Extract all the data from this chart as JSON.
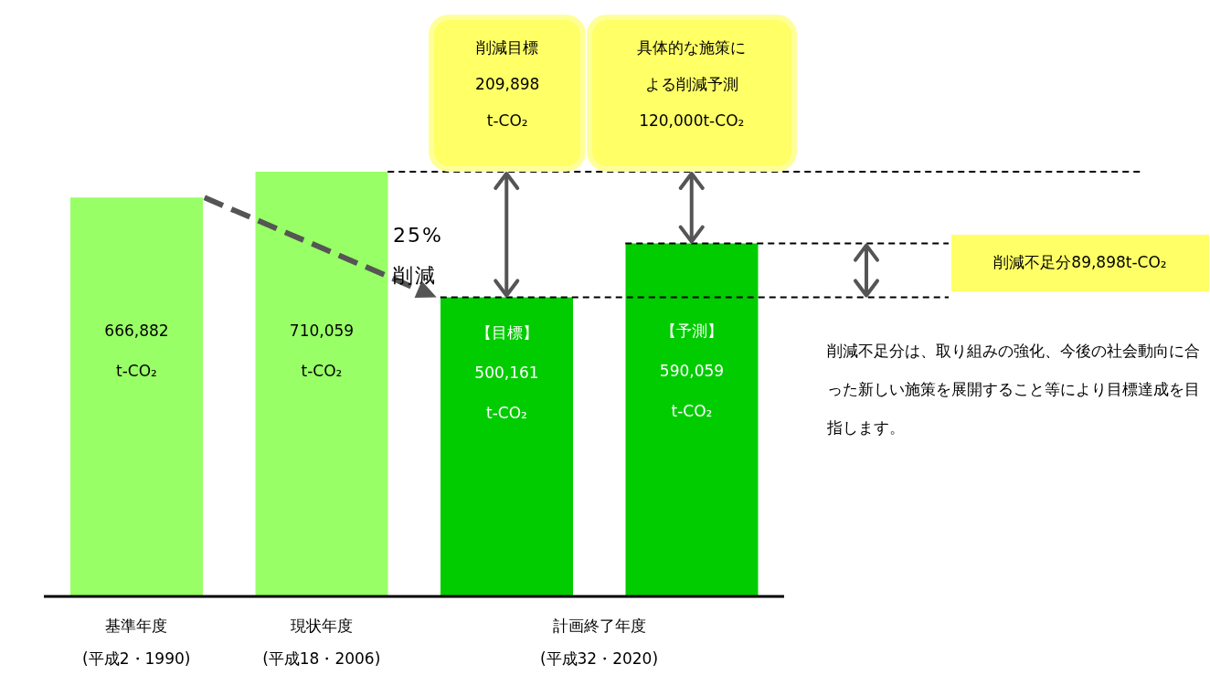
{
  "chart_data": {
    "type": "bar",
    "categories": [
      "基準年度\n(平成2・1990)",
      "現状年度\n(平成18・2006)",
      "計画終了年度\n(平成32・2020)",
      null
    ],
    "values": [
      666882,
      710059,
      500161,
      590059
    ],
    "colors": [
      "#99ff66",
      "#99ff66",
      "#00cc00",
      "#00cc00"
    ],
    "value_labels": [
      "666,882",
      "710,059",
      "500,161",
      "590,059"
    ],
    "ref_lines": [
      {
        "axis": "y",
        "value": 710059,
        "color": "#000000",
        "line_style": "dashed"
      },
      {
        "axis": "y",
        "value": 590059,
        "color": "#000000",
        "line_style": "dashed"
      },
      {
        "axis": "y",
        "value": 500161,
        "color": "#000000",
        "line_style": "dashed"
      }
    ],
    "annotations": [
      "削減目標\n209,898\nt-CO₂",
      "具体的な施策による削減予測\n120,000t-CO₂",
      "25%\n削減",
      "削減不足分89,898t-CO₂",
      "削減不足分は、取り組みの強化、今後の社会動向に合った新しい施策を展開すること等により目標達成を目指します。",
      "【目標】",
      "【予測】",
      "t-CO₂",
      "t-CO₂",
      "t-CO₂",
      "t-CO₂"
    ]
  }
}
